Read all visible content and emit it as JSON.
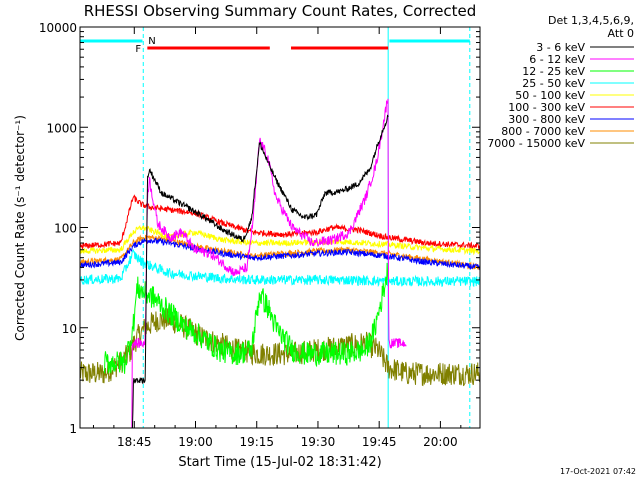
{
  "chart_data": {
    "type": "line",
    "title": "RHESSI Observing Summary Count Rates, Corrected",
    "xlabel": "Start Time (15-Jul-02 18:31:42)",
    "ylabel": "Corrected Count Rate (s⁻¹ detector⁻¹)",
    "x_units": "minutes since 18:31:42",
    "xlim": [
      0,
      98
    ],
    "ylim": [
      1,
      10000
    ],
    "yscale": "log",
    "x_ticks": [
      {
        "x": 13.3,
        "label": "18:45"
      },
      {
        "x": 28.3,
        "label": "19:00"
      },
      {
        "x": 43.3,
        "label": "19:15"
      },
      {
        "x": 58.3,
        "label": "19:30"
      },
      {
        "x": 73.3,
        "label": "19:45"
      },
      {
        "x": 88.3,
        "label": "20:00"
      }
    ],
    "y_ticks": [
      {
        "y": 1,
        "label": "1"
      },
      {
        "y": 10,
        "label": "10"
      },
      {
        "y": 100,
        "label": "100"
      },
      {
        "y": 1000,
        "label": "1000"
      },
      {
        "y": 10000,
        "label": "10000"
      }
    ],
    "legend_title": [
      "Det 1,3,4,5,6,9,",
      "Att 0"
    ],
    "legend_position": "right, outside plot",
    "timestamp": "17-Oct-2021 07:42",
    "series": [
      {
        "name": "3 - 6 keV",
        "color": "#000000",
        "x": [
          12,
          12.9,
          13,
          16,
          16.5,
          17,
          20,
          25,
          30,
          35,
          40,
          42,
          44,
          46,
          48,
          52,
          55,
          58,
          60,
          64,
          68,
          71,
          72.5,
          74,
          75.5
        ],
        "y": [
          0,
          0,
          3,
          3,
          300,
          380,
          220,
          170,
          130,
          95,
          75,
          120,
          700,
          450,
          300,
          150,
          125,
          135,
          220,
          230,
          270,
          380,
          600,
          900,
          1300
        ]
      },
      {
        "name": "6 - 12 keV",
        "color": "#ff00ff",
        "x": [
          12.7,
          12.8,
          16,
          16.5,
          17,
          19,
          22,
          25,
          28,
          32,
          38,
          41,
          42.5,
          44,
          46,
          48,
          52,
          57,
          62,
          66,
          70,
          72.5,
          74,
          75.5,
          75.6,
          80
        ],
        "y": [
          0,
          7,
          7,
          200,
          300,
          110,
          80,
          90,
          60,
          55,
          35,
          40,
          130,
          750,
          500,
          200,
          100,
          70,
          75,
          90,
          200,
          420,
          900,
          2100,
          7,
          7
        ]
      },
      {
        "name": "12 - 25 keV",
        "color": "#00ff00",
        "x": [
          6,
          11,
          13,
          14,
          16,
          18,
          22,
          26,
          30,
          34,
          38,
          42,
          44,
          46,
          48,
          52,
          55,
          57,
          60,
          65,
          70,
          72,
          74,
          75.5
        ],
        "y": [
          4.5,
          4.5,
          10,
          25,
          22,
          20,
          14,
          10,
          8,
          6,
          5.5,
          6,
          22,
          16,
          10,
          6,
          5.5,
          5.5,
          5.5,
          5.5,
          6,
          9,
          20,
          40
        ]
      },
      {
        "name": "25 - 50 keV",
        "color": "#00ffff",
        "x": [
          0,
          10,
          13,
          15,
          17,
          22,
          28,
          35,
          42,
          50,
          58,
          65,
          75,
          85,
          98
        ],
        "y": [
          30,
          31,
          55,
          46,
          42,
          35,
          33,
          31,
          30,
          30,
          30,
          30,
          29,
          29,
          29
        ]
      },
      {
        "name": "50 - 100 keV",
        "color": "#ffff00",
        "x": [
          0,
          10,
          13,
          15,
          17,
          22,
          28,
          35,
          42,
          50,
          58,
          65,
          75,
          85,
          98
        ],
        "y": [
          58,
          60,
          90,
          100,
          95,
          80,
          90,
          75,
          70,
          70,
          72,
          72,
          68,
          62,
          58
        ]
      },
      {
        "name": "100 - 300 keV",
        "color": "#ff0000",
        "x": [
          0,
          10,
          13,
          15,
          17,
          22,
          28,
          35,
          42,
          50,
          58,
          62,
          68,
          75,
          85,
          98
        ],
        "y": [
          65,
          70,
          200,
          170,
          160,
          150,
          140,
          110,
          90,
          85,
          90,
          100,
          95,
          80,
          70,
          65
        ]
      },
      {
        "name": "300 - 800 keV",
        "color": "#0000ff",
        "x": [
          0,
          10,
          13,
          15,
          17,
          22,
          28,
          35,
          42,
          50,
          58,
          65,
          75,
          85,
          98
        ],
        "y": [
          42,
          45,
          65,
          72,
          75,
          70,
          62,
          55,
          50,
          52,
          55,
          57,
          52,
          45,
          40
        ]
      },
      {
        "name": "800 - 7000 keV",
        "color": "#ff8c00",
        "x": [
          0,
          10,
          13,
          15,
          17,
          22,
          28,
          35,
          42,
          50,
          58,
          65,
          75,
          85,
          98
        ],
        "y": [
          45,
          48,
          70,
          78,
          80,
          75,
          65,
          58,
          52,
          55,
          58,
          60,
          55,
          48,
          40
        ]
      },
      {
        "name": "7000 - 15000 keV",
        "color": "#808000",
        "x": [
          0,
          6,
          10,
          12,
          14,
          16,
          19,
          22,
          26,
          30,
          34,
          38,
          44,
          52,
          58,
          64,
          70,
          73,
          75.5,
          80,
          86,
          98
        ],
        "y": [
          3.5,
          3.5,
          4.5,
          5.5,
          8,
          10,
          12,
          12,
          10,
          8,
          7,
          6,
          5.5,
          5.5,
          6,
          6.5,
          7,
          6,
          4,
          3.5,
          3.5,
          3.5
        ]
      }
    ],
    "attenuator_bars": [
      [
        0,
        15.3
      ],
      [
        75.8,
        95.5
      ]
    ],
    "flare_flag_label": "F",
    "flare_flags": [
      [
        16.5,
        46.5
      ],
      [
        51.7,
        75.5
      ]
    ],
    "night_label": "N",
    "night_markers": [
      15.5,
      95.5
    ],
    "saa_markers": [
      0,
      75.5
    ]
  }
}
